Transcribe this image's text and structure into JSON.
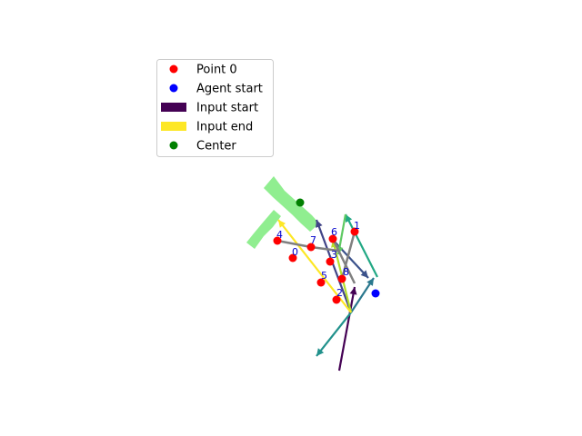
{
  "legend": {
    "items": [
      {
        "label": "Point 0",
        "kind": "dot",
        "color": "#ff0000"
      },
      {
        "label": "Agent start",
        "kind": "dot",
        "color": "#0000ff"
      },
      {
        "label": "Input start",
        "kind": "bar",
        "color": "#440154"
      },
      {
        "label": "Input end",
        "kind": "bar",
        "color": "#fde725"
      },
      {
        "label": "Center",
        "kind": "dot",
        "color": "#008000"
      }
    ]
  },
  "point_labels": [
    "0",
    "1",
    "2",
    "3",
    "4",
    "5",
    "6",
    "7",
    "8"
  ],
  "colors": {
    "shape_fill": "#90ee90",
    "point": "#ff0000",
    "agent": "#0000ff",
    "center": "#008000",
    "label_text": "#0000cc",
    "connection_line": "#808080"
  }
}
